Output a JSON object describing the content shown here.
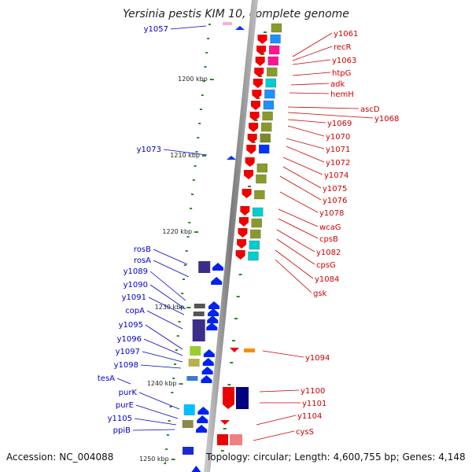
{
  "title": "Yersinia pestis KIM 10, complete genome",
  "accession": "Accession: NC_004088",
  "topology": "Topology: circular; Length: 4,600,755 bp; Genes: 4,148",
  "colors": {
    "backbone": "#8c8c8c",
    "left_label": "#0000cc",
    "right_label": "#cc0000",
    "tick": "#2a8a2a",
    "kbp_label": "#222222"
  },
  "kbp_ticks": [
    {
      "label": "1200 kbp"
    },
    {
      "label": "1210 kbp"
    },
    {
      "label": "1220 kbp"
    },
    {
      "label": "1230 kbp"
    },
    {
      "label": "1240 kbp"
    },
    {
      "label": "1250 kbp"
    }
  ],
  "left_labels": [
    "y1057",
    "y1073",
    "rosB",
    "rosA",
    "y1089",
    "y1090",
    "y1091",
    "copA",
    "y1095",
    "y1096",
    "y1097",
    "y1098",
    "tesA",
    "purK",
    "purE",
    "y1105",
    "ppiB"
  ],
  "right_labels": [
    "y1061",
    "recR",
    "y1063",
    "htpG",
    "adk",
    "hemH",
    "ascD",
    "y1068",
    "y1069",
    "y1070",
    "y1071",
    "y1072",
    "y1074",
    "y1075",
    "y1076",
    "y1078",
    "wcaG",
    "cpsB",
    "y1082",
    "cpsG",
    "y1084",
    "gsk",
    "y1094",
    "y1100",
    "y1101",
    "y1104",
    "cysS"
  ]
}
